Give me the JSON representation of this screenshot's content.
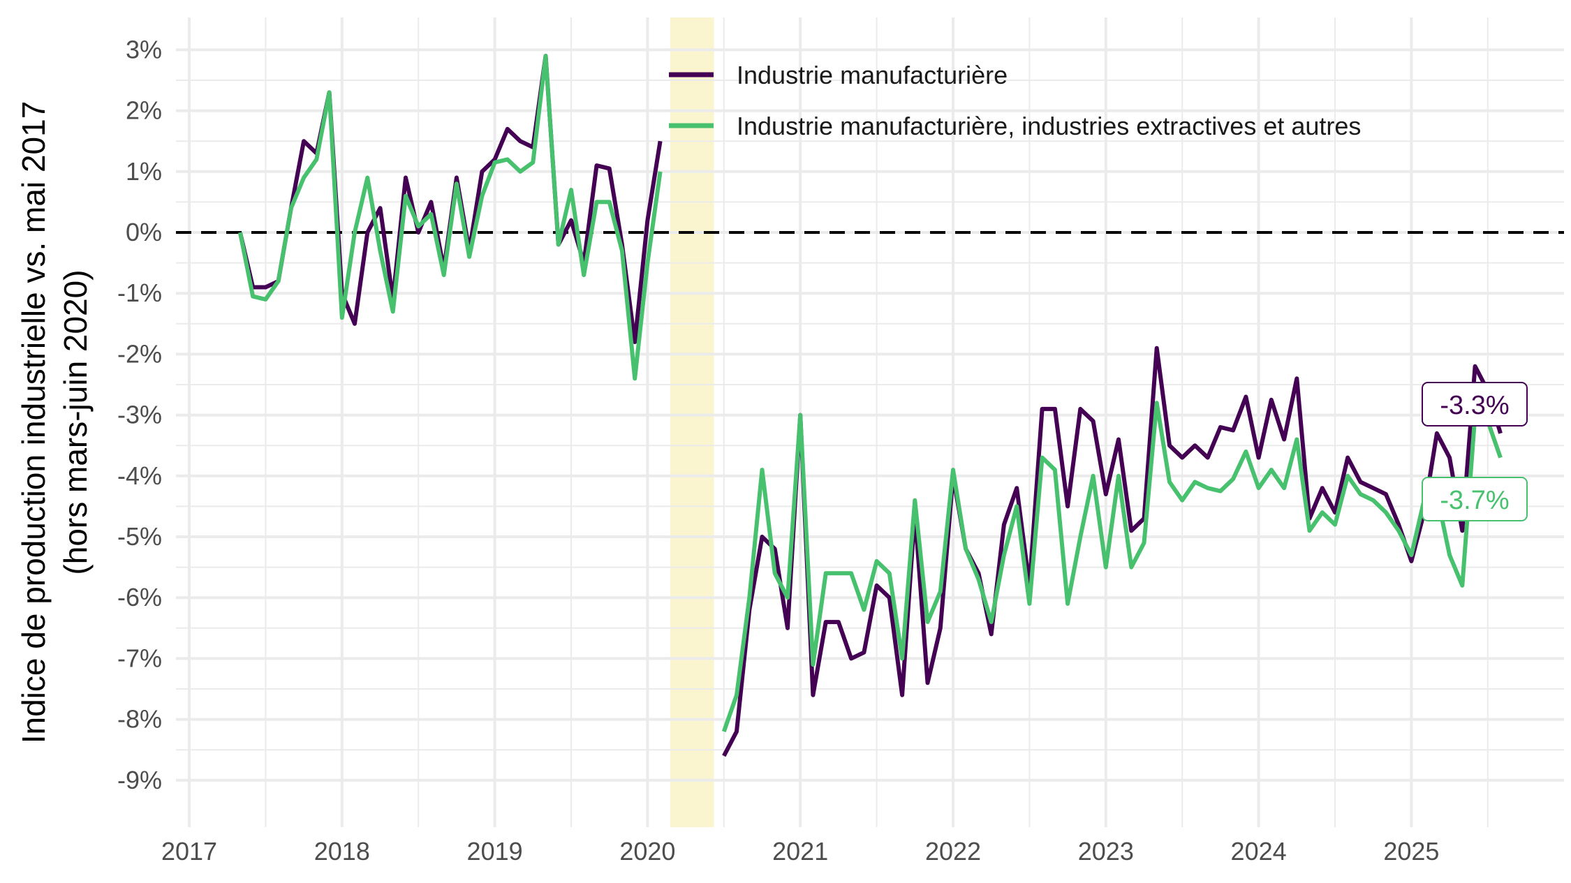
{
  "chart_data": {
    "type": "line",
    "title": "",
    "xlabel": "",
    "ylabel": "Indice de production industrielle vs. mai 2017",
    "ylabel_sub": "(hors mars-juin 2020)",
    "xlim": [
      "2017-01",
      "2025-12"
    ],
    "ylim": [
      -9.2,
      3.3
    ],
    "x_ticks": [
      "2017",
      "2018",
      "2019",
      "2020",
      "2021",
      "2022",
      "2023",
      "2024",
      "2025"
    ],
    "y_ticks": [
      {
        "value": 3,
        "label": "3%"
      },
      {
        "value": 2,
        "label": "2%"
      },
      {
        "value": 1,
        "label": "1%"
      },
      {
        "value": 0,
        "label": "0%"
      },
      {
        "value": -1,
        "label": "-1%"
      },
      {
        "value": -2,
        "label": "-2%"
      },
      {
        "value": -3,
        "label": "-3%"
      },
      {
        "value": -4,
        "label": "-4%"
      },
      {
        "value": -5,
        "label": "-5%"
      },
      {
        "value": -6,
        "label": "-6%"
      },
      {
        "value": -7,
        "label": "-7%"
      },
      {
        "value": -8,
        "label": "-8%"
      },
      {
        "value": -9,
        "label": "-9%"
      }
    ],
    "grid": true,
    "reference_line": {
      "y": 0,
      "style": "dashed",
      "color": "#000000"
    },
    "shaded_period": {
      "start": "2020-03",
      "end": "2020-06",
      "color": "#fbf5cf"
    },
    "legend_position": "top",
    "series": [
      {
        "name": "Industrie manufacturière",
        "color": "#440154",
        "end_label": "-3.3%",
        "segments": [
          {
            "start": "2017-05",
            "values": [
              0.0,
              -0.9,
              -0.9,
              -0.8,
              0.4,
              1.5,
              1.3,
              2.3,
              -1.0,
              -1.5,
              0.0,
              0.4,
              -1.1,
              0.9,
              0.0,
              0.5,
              -0.6,
              0.9,
              -0.3,
              1.0,
              1.2,
              1.7,
              1.5,
              1.4,
              2.9,
              -0.2,
              0.2,
              -0.5,
              1.1,
              1.05,
              -0.2,
              -1.8,
              0.2,
              1.5
            ]
          },
          {
            "start": "2020-07",
            "values": [
              -8.6,
              -8.2,
              -6.2,
              -5.0,
              -5.2,
              -6.5,
              -3.0,
              -7.6,
              -6.4,
              -6.4,
              -7.0,
              -6.9,
              -5.8,
              -6.0,
              -7.6,
              -4.6,
              -7.4,
              -6.5,
              -4.0,
              -5.2,
              -5.6,
              -6.6,
              -4.8,
              -4.2,
              -5.8,
              -2.9,
              -2.9,
              -4.5,
              -2.9,
              -3.1,
              -4.3,
              -3.4,
              -4.9,
              -4.7,
              -1.9,
              -3.5,
              -3.7,
              -3.5,
              -3.7,
              -3.2,
              -3.25,
              -2.7,
              -3.7,
              -2.75,
              -3.4,
              -2.4,
              -4.7,
              -4.2,
              -4.6,
              -3.7,
              -4.1,
              -4.2,
              -4.3,
              -4.8,
              -5.4,
              -4.6,
              -3.3,
              -3.7,
              -4.9,
              -2.2,
              -2.6,
              -3.3
            ]
          }
        ]
      },
      {
        "name": "Industrie manufacturière, industries extractives et autres",
        "color": "#48c16e",
        "end_label": "-3.7%",
        "segments": [
          {
            "start": "2017-05",
            "values": [
              0.0,
              -1.05,
              -1.1,
              -0.8,
              0.4,
              0.9,
              1.2,
              2.3,
              -1.4,
              0.0,
              0.9,
              -0.3,
              -1.3,
              0.6,
              0.1,
              0.3,
              -0.7,
              0.8,
              -0.4,
              0.6,
              1.15,
              1.2,
              1.0,
              1.15,
              2.9,
              -0.2,
              0.7,
              -0.7,
              0.5,
              0.5,
              -0.3,
              -2.4,
              -0.5,
              1.0
            ]
          },
          {
            "start": "2020-07",
            "values": [
              -8.2,
              -7.6,
              -6.0,
              -3.9,
              -5.6,
              -6.0,
              -3.0,
              -7.1,
              -5.6,
              -5.6,
              -5.6,
              -6.2,
              -5.4,
              -5.6,
              -7.0,
              -4.4,
              -6.4,
              -5.9,
              -3.9,
              -5.2,
              -5.7,
              -6.4,
              -5.3,
              -4.5,
              -6.1,
              -3.7,
              -3.9,
              -6.1,
              -5.0,
              -4.0,
              -5.5,
              -4.0,
              -5.5,
              -5.1,
              -2.8,
              -4.1,
              -4.4,
              -4.1,
              -4.2,
              -4.25,
              -4.05,
              -3.6,
              -4.2,
              -3.9,
              -4.2,
              -3.4,
              -4.9,
              -4.6,
              -4.8,
              -4.0,
              -4.3,
              -4.4,
              -4.6,
              -4.9,
              -5.3,
              -4.4,
              -4.3,
              -5.3,
              -5.8,
              -3.0,
              -3.1,
              -3.7
            ]
          }
        ]
      }
    ]
  }
}
